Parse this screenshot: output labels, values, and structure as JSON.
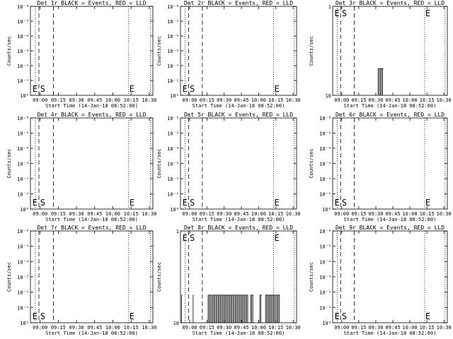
{
  "window": {
    "background": "#ffffff",
    "ink": "#000000"
  },
  "chart_data": [
    {
      "type": "line",
      "title": "Det 1r BLACK = Events, RED = LLD",
      "xlabel": "Start Time (14-Jan-18 08:52:00)",
      "ylabel": "Counts/sec",
      "xlim": [
        "08:52",
        "10:33"
      ],
      "xticks": [
        "09:00",
        "09:15",
        "09:30",
        "09:45",
        "10:00",
        "10:15",
        "10:30"
      ],
      "yscale": "log",
      "ylim": [
        1e-06,
        1
      ],
      "yticks": [
        "10⁰",
        "10⁻¹",
        "10⁻²",
        "10⁻³",
        "10⁻⁴",
        "10⁻⁵",
        "10⁻⁶"
      ],
      "markers": {
        "dotted": [
          "08:56",
          "10:13",
          "10:31"
        ],
        "dashed": [
          "08:59",
          "09:11"
        ],
        "labels": {
          "E": "08:53",
          "S": "09:00",
          "E2": "10:13"
        }
      },
      "bursts": [],
      "series": [],
      "labels_top": false
    },
    {
      "type": "line",
      "title": "Det 2r BLACK = Events, RED = LLD",
      "xlabel": "Start Time (14-Jan-18 08:52:00)",
      "ylabel": "Counts/sec",
      "xlim": [
        "08:52",
        "10:33"
      ],
      "xticks": [
        "09:00",
        "09:15",
        "09:30",
        "09:45",
        "10:00",
        "10:15",
        "10:30"
      ],
      "yscale": "log",
      "ylim": [
        1e-06,
        1
      ],
      "yticks": [
        "10⁰",
        "10⁻¹",
        "10⁻²",
        "10⁻³",
        "10⁻⁴",
        "10⁻⁵",
        "10⁻⁶"
      ],
      "markers": {
        "dotted": [
          "08:56",
          "10:13",
          "10:31"
        ],
        "dashed": [
          "08:59",
          "09:11"
        ],
        "labels": {
          "E": "08:53",
          "S": "09:00",
          "E2": "10:13"
        }
      },
      "bursts": [],
      "series": [],
      "labels_top": false
    },
    {
      "type": "line",
      "title": "Det 3r BLACK = Events, RED = LLD",
      "xlabel": "Start Time (14-Jan-18 08:52:00)",
      "ylabel": "Counts/sec",
      "xlim": [
        "08:52",
        "10:33"
      ],
      "xticks": [
        "09:00",
        "09:15",
        "09:30",
        "09:45",
        "10:00",
        "10:15",
        "10:30"
      ],
      "yscale": "log",
      "ylim": [
        1,
        10
      ],
      "yticks": [
        "10",
        "1"
      ],
      "markers": {
        "dotted": [
          "08:56",
          "10:13",
          "10:31"
        ],
        "dashed": [
          "08:59",
          "09:11"
        ],
        "labels": {
          "E": "08:53",
          "S": "09:00",
          "E2": "10:13"
        }
      },
      "bursts": [
        [
          "09:32",
          "09:36"
        ]
      ],
      "burst_level": 2,
      "series": [],
      "labels_top": true
    },
    {
      "type": "line",
      "title": "Det 4r BLACK = Events, RED = LLD",
      "xlabel": "Start Time (14-Jan-18 08:52:00)",
      "ylabel": "Counts/sec",
      "xlim": [
        "08:52",
        "10:33"
      ],
      "xticks": [
        "09:00",
        "09:15",
        "09:30",
        "09:45",
        "10:00",
        "10:15",
        "10:30"
      ],
      "yscale": "log",
      "ylim": [
        1e-06,
        1
      ],
      "yticks": [
        "10⁰",
        "10⁻¹",
        "10⁻²",
        "10⁻³",
        "10⁻⁴",
        "10⁻⁵",
        "10⁻⁶"
      ],
      "markers": {
        "dotted": [
          "08:56",
          "10:13",
          "10:31"
        ],
        "dashed": [
          "08:59",
          "09:11"
        ],
        "labels": {
          "E": "08:53",
          "S": "09:00",
          "E2": "10:13"
        }
      },
      "bursts": [],
      "series": [],
      "labels_top": false
    },
    {
      "type": "line",
      "title": "Det 5r BLACK = Events, RED = LLD",
      "xlabel": "Start Time (14-Jan-18 08:52:00)",
      "ylabel": "Counts/sec",
      "xlim": [
        "08:52",
        "10:33"
      ],
      "xticks": [
        "09:00",
        "09:15",
        "09:30",
        "09:45",
        "10:00",
        "10:15",
        "10:30"
      ],
      "yscale": "log",
      "ylim": [
        1e-06,
        1
      ],
      "yticks": [
        "10⁰",
        "10⁻¹",
        "10⁻²",
        "10⁻³",
        "10⁻⁴",
        "10⁻⁵",
        "10⁻⁶"
      ],
      "markers": {
        "dotted": [
          "08:56",
          "10:13",
          "10:31"
        ],
        "dashed": [
          "08:59",
          "09:11"
        ],
        "labels": {
          "E": "08:53",
          "S": "09:00",
          "E2": "10:13"
        }
      },
      "bursts": [],
      "series": [],
      "labels_top": false
    },
    {
      "type": "line",
      "title": "Det 6r BLACK = Events, RED = LLD",
      "xlabel": "Start Time (14-Jan-18 08:52:00)",
      "ylabel": "Counts/sec",
      "xlim": [
        "08:52",
        "10:33"
      ],
      "xticks": [
        "09:00",
        "09:15",
        "09:30",
        "09:45",
        "10:00",
        "10:15",
        "10:30"
      ],
      "yscale": "log",
      "ylim": [
        1e-06,
        1
      ],
      "yticks": [
        "10⁰",
        "10⁻¹",
        "10⁻²",
        "10⁻³",
        "10⁻⁴",
        "10⁻⁵",
        "10⁻⁶"
      ],
      "markers": {
        "dotted": [
          "08:56",
          "10:13",
          "10:31"
        ],
        "dashed": [
          "08:59",
          "09:11"
        ],
        "labels": {
          "E": "08:53",
          "S": "09:00",
          "E2": "10:13"
        }
      },
      "bursts": [],
      "series": [],
      "labels_top": false
    },
    {
      "type": "line",
      "title": "Det 7r BLACK = Events, RED = LLD",
      "xlabel": "Start Time (14-Jan-18 08:52:00)",
      "ylabel": "Counts/sec",
      "xlim": [
        "08:52",
        "10:33"
      ],
      "xticks": [
        "09:00",
        "09:15",
        "09:30",
        "09:45",
        "10:00",
        "10:15",
        "10:30"
      ],
      "yscale": "log",
      "ylim": [
        1e-06,
        1
      ],
      "yticks": [
        "10⁰",
        "10⁻¹",
        "10⁻²",
        "10⁻³",
        "10⁻⁴",
        "10⁻⁵",
        "10⁻⁶"
      ],
      "markers": {
        "dotted": [
          "08:56",
          "10:13",
          "10:31"
        ],
        "dashed": [
          "08:59",
          "09:11"
        ],
        "labels": {
          "E": "08:53",
          "S": "09:00",
          "E2": "10:13"
        }
      },
      "bursts": [],
      "series": [],
      "labels_top": false
    },
    {
      "type": "line",
      "title": "Det 8r BLACK = Events, RED = LLD",
      "xlabel": "Start Time (14-Jan-18 08:52:00)",
      "ylabel": "Counts/sec",
      "xlim": [
        "08:52",
        "10:33"
      ],
      "xticks": [
        "09:00",
        "09:15",
        "09:30",
        "09:45",
        "10:00",
        "10:15",
        "10:30"
      ],
      "yscale": "log",
      "ylim": [
        1,
        10
      ],
      "yticks": [
        "10",
        "1"
      ],
      "markers": {
        "dotted": [
          "08:56",
          "10:13",
          "10:31"
        ],
        "dashed": [
          "08:59",
          "09:11"
        ],
        "labels": {
          "E": "08:53",
          "S": "09:00",
          "E2": "10:13"
        }
      },
      "bursts": [
        [
          "08:53",
          "08:53"
        ],
        [
          "09:03",
          "09:03"
        ],
        [
          "09:16",
          "09:18"
        ],
        [
          "09:19",
          "09:50"
        ],
        [
          "09:53",
          "09:55"
        ],
        [
          "10:01",
          "10:02"
        ],
        [
          "10:06",
          "10:14"
        ],
        [
          "10:15",
          "10:18"
        ]
      ],
      "burst_level": 2,
      "series": [],
      "labels_top": true
    },
    {
      "type": "line",
      "title": "Det 9r BLACK = Events, RED = LLD",
      "xlabel": "Start Time (14-Jan-18 08:52:00)",
      "ylabel": "Counts/sec",
      "xlim": [
        "08:52",
        "10:33"
      ],
      "xticks": [
        "09:00",
        "09:15",
        "09:30",
        "09:45",
        "10:00",
        "10:15",
        "10:30"
      ],
      "yscale": "log",
      "ylim": [
        1e-06,
        1
      ],
      "yticks": [
        "10⁰",
        "10⁻¹",
        "10⁻²",
        "10⁻³",
        "10⁻⁴",
        "10⁻⁵",
        "10⁻⁶"
      ],
      "markers": {
        "dotted": [
          "08:56",
          "10:13",
          "10:31"
        ],
        "dashed": [
          "08:59",
          "09:11"
        ],
        "labels": {
          "E": "08:53",
          "S": "09:00",
          "E2": "10:13"
        }
      },
      "bursts": [],
      "series": [],
      "labels_top": false
    }
  ]
}
